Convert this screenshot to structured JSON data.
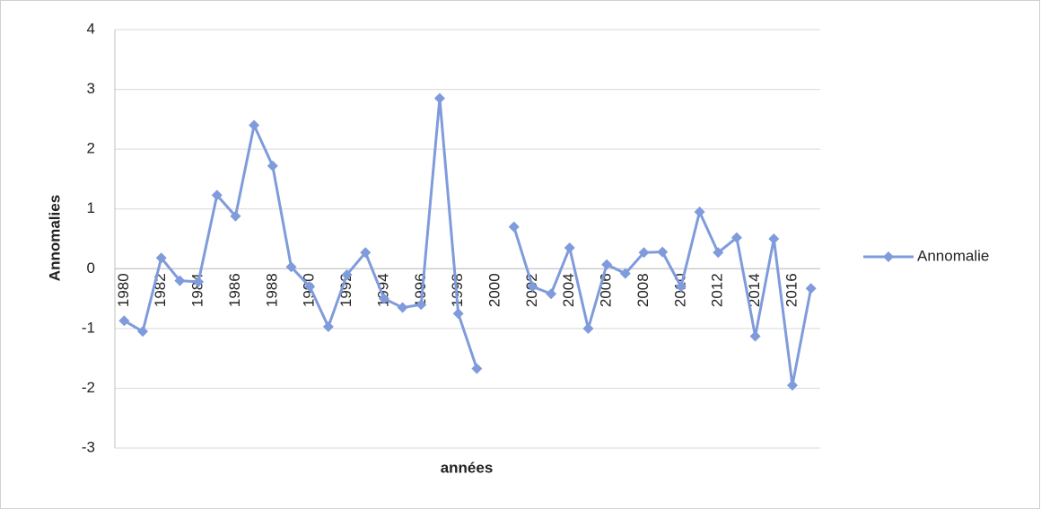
{
  "chart_data": {
    "type": "line",
    "categories": [
      "1980",
      null,
      "1982",
      null,
      "1984",
      null,
      "1986",
      null,
      "1988",
      null,
      "1990",
      null,
      "1992",
      null,
      "1994",
      null,
      "1996",
      null,
      "1998",
      null,
      "2000",
      null,
      "2002",
      null,
      "2004",
      null,
      "2006",
      null,
      "2008",
      null,
      "2010",
      null,
      "2012",
      null,
      "2014",
      null,
      "2016",
      null
    ],
    "series": [
      {
        "name": "Annomalie",
        "color": "#7f9bdc",
        "values": [
          -0.87,
          -1.05,
          0.18,
          -0.2,
          -0.22,
          1.23,
          0.88,
          2.4,
          1.72,
          0.03,
          -0.3,
          -0.97,
          -0.1,
          0.27,
          -0.5,
          -0.65,
          -0.6,
          2.85,
          -0.75,
          -1.67,
          null,
          0.7,
          -0.3,
          -0.42,
          0.35,
          -1.0,
          0.07,
          -0.08,
          0.27,
          0.28,
          -0.3,
          0.95,
          0.27,
          0.52,
          -1.13,
          0.5,
          -1.95,
          -0.33
        ]
      }
    ],
    "xlabel": "années",
    "ylabel": "Annomalies",
    "ylim": [
      -3,
      4
    ],
    "yticks": [
      -3,
      -2,
      -1,
      0,
      1,
      2,
      3,
      4
    ],
    "grid": true,
    "legend": "right"
  }
}
